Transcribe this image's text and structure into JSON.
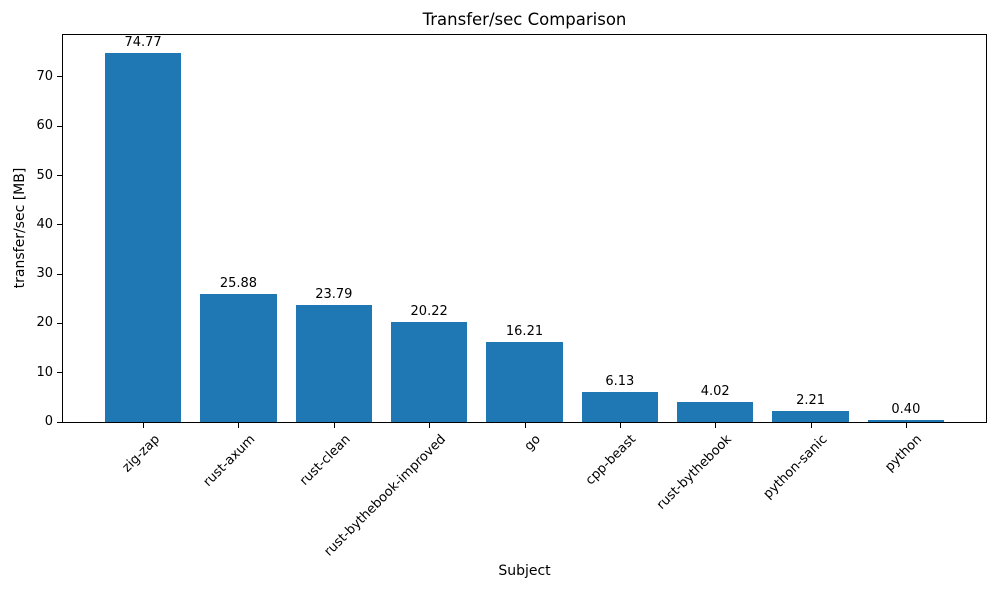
{
  "chart_data": {
    "type": "bar",
    "title": "Transfer/sec Comparison",
    "xlabel": "Subject",
    "ylabel": "transfer/sec [MB]",
    "categories": [
      "zig-zap",
      "rust-axum",
      "rust-clean",
      "rust-bythebook-improved",
      "go",
      "cpp-beast",
      "rust-bythebook",
      "python-sanic",
      "python"
    ],
    "values": [
      74.77,
      25.88,
      23.79,
      20.22,
      16.21,
      6.13,
      4.02,
      2.21,
      0.4
    ],
    "value_labels": [
      "74.77",
      "25.88",
      "23.79",
      "20.22",
      "16.21",
      "6.13",
      "4.02",
      "2.21",
      "0.40"
    ],
    "yticks": [
      0,
      10,
      20,
      30,
      40,
      50,
      60,
      70
    ],
    "ytick_labels": [
      "0",
      "10",
      "20",
      "30",
      "40",
      "50",
      "60",
      "70"
    ],
    "ylim": [
      0,
      78.5
    ],
    "bar_color": "#1f77b4",
    "text_color": "#000000",
    "grid": false,
    "legend": null
  }
}
